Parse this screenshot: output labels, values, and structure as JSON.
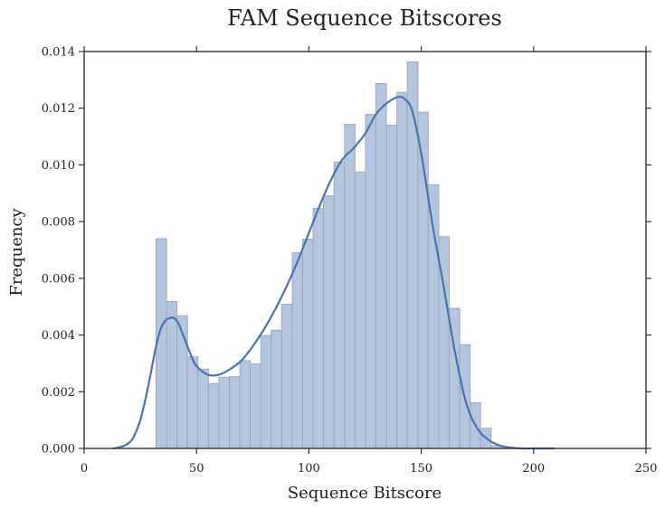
{
  "chart_data": {
    "type": "bar",
    "title": "FAM Sequence Bitscores",
    "xlabel": "Sequence Bitscore",
    "ylabel": "Frequency",
    "xlim": [
      0,
      250
    ],
    "ylim": [
      0,
      0.014
    ],
    "xticks": [
      "0",
      "50",
      "100",
      "150",
      "200",
      "250"
    ],
    "yticks": [
      "0.000",
      "0.002",
      "0.004",
      "0.006",
      "0.008",
      "0.010",
      "0.012",
      "0.014"
    ],
    "grid": false,
    "colors": {
      "bar_fill": "#b6c5de",
      "bar_edge": "#98a9c6",
      "kde_line": "#4c72b0",
      "axis": "#333333",
      "text": "#222222"
    },
    "histogram": {
      "bins": [
        {
          "x0": 32.0,
          "x1": 36.7,
          "density": 0.0074
        },
        {
          "x0": 36.7,
          "x1": 41.3,
          "density": 0.00518
        },
        {
          "x0": 41.3,
          "x1": 46.0,
          "density": 0.00468
        },
        {
          "x0": 46.0,
          "x1": 50.6,
          "density": 0.00323
        },
        {
          "x0": 50.6,
          "x1": 55.3,
          "density": 0.0028
        },
        {
          "x0": 55.3,
          "x1": 60.0,
          "density": 0.00229
        },
        {
          "x0": 60.0,
          "x1": 64.6,
          "density": 0.00251
        },
        {
          "x0": 64.6,
          "x1": 69.3,
          "density": 0.00253
        },
        {
          "x0": 69.3,
          "x1": 73.9,
          "density": 0.0031
        },
        {
          "x0": 73.9,
          "x1": 78.6,
          "density": 0.00298
        },
        {
          "x0": 78.6,
          "x1": 83.2,
          "density": 0.00398
        },
        {
          "x0": 83.2,
          "x1": 87.9,
          "density": 0.00417
        },
        {
          "x0": 87.9,
          "x1": 92.6,
          "density": 0.00509
        },
        {
          "x0": 92.6,
          "x1": 97.2,
          "density": 0.0069
        },
        {
          "x0": 97.2,
          "x1": 101.9,
          "density": 0.00738
        },
        {
          "x0": 101.9,
          "x1": 106.5,
          "density": 0.00847
        },
        {
          "x0": 106.5,
          "x1": 111.2,
          "density": 0.00891
        },
        {
          "x0": 111.2,
          "x1": 115.9,
          "density": 0.0101
        },
        {
          "x0": 115.9,
          "x1": 120.5,
          "density": 0.01143
        },
        {
          "x0": 120.5,
          "x1": 125.2,
          "density": 0.00975
        },
        {
          "x0": 125.2,
          "x1": 129.8,
          "density": 0.01178
        },
        {
          "x0": 129.8,
          "x1": 134.5,
          "density": 0.01287
        },
        {
          "x0": 134.5,
          "x1": 139.2,
          "density": 0.0114
        },
        {
          "x0": 139.2,
          "x1": 143.8,
          "density": 0.01256
        },
        {
          "x0": 143.8,
          "x1": 148.5,
          "density": 0.01363
        },
        {
          "x0": 148.5,
          "x1": 153.1,
          "density": 0.01186
        },
        {
          "x0": 153.1,
          "x1": 157.8,
          "density": 0.0093
        },
        {
          "x0": 157.8,
          "x1": 162.4,
          "density": 0.00747
        },
        {
          "x0": 162.4,
          "x1": 167.1,
          "density": 0.00494
        },
        {
          "x0": 167.1,
          "x1": 171.8,
          "density": 0.00366
        },
        {
          "x0": 171.8,
          "x1": 176.4,
          "density": 0.00161
        },
        {
          "x0": 176.4,
          "x1": 181.1,
          "density": 0.00071
        },
        {
          "x0": 181.1,
          "x1": 185.7,
          "density": 0.0001
        }
      ]
    },
    "kde": {
      "x": [
        13,
        15,
        18,
        20,
        22,
        25,
        28,
        30,
        32,
        34,
        36,
        38,
        40,
        42,
        44,
        46,
        48,
        50,
        55,
        60,
        65,
        70,
        75,
        80,
        85,
        90,
        95,
        100,
        105,
        110,
        115,
        120,
        125,
        130,
        135,
        140,
        143,
        146,
        150,
        155,
        160,
        165,
        170,
        175,
        180,
        185,
        190,
        195,
        200,
        209
      ],
      "y": [
        0.0,
        3e-05,
        0.0001,
        0.0002,
        0.0004,
        0.001,
        0.002,
        0.0028,
        0.0036,
        0.0042,
        0.0045,
        0.0046,
        0.0046,
        0.0044,
        0.004,
        0.0036,
        0.0032,
        0.0029,
        0.0026,
        0.0026,
        0.0028,
        0.0031,
        0.0036,
        0.0042,
        0.0049,
        0.0057,
        0.0066,
        0.0076,
        0.0086,
        0.0095,
        0.0102,
        0.0106,
        0.0111,
        0.0118,
        0.0122,
        0.0124,
        0.0123,
        0.0119,
        0.0104,
        0.0079,
        0.0057,
        0.0034,
        0.0016,
        0.0007,
        0.0003,
        0.0001,
        3e-05,
        0.0,
        0.0,
        0.0
      ]
    }
  }
}
